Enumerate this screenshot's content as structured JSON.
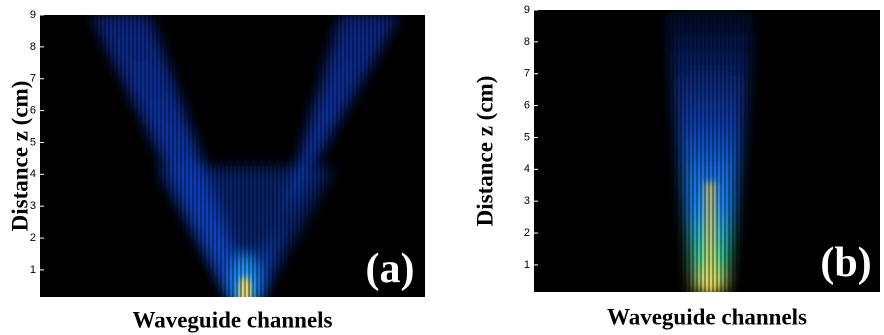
{
  "chart_data": [
    {
      "type": "heatmap",
      "x_label": "Waveguide channels",
      "y_label": "Distance z (cm)",
      "panel_label": "(a)",
      "ylim": [
        0.15,
        9
      ],
      "yticks": [
        1,
        2,
        3,
        4,
        5,
        6,
        7,
        8,
        9
      ]
    },
    {
      "type": "heatmap",
      "x_label": "Waveguide channels",
      "y_label": "Distance z (cm)",
      "panel_label": "(b)",
      "ylim": [
        0.15,
        9
      ],
      "yticks": [
        1,
        2,
        3,
        4,
        5,
        6,
        7,
        8,
        9
      ]
    }
  ]
}
